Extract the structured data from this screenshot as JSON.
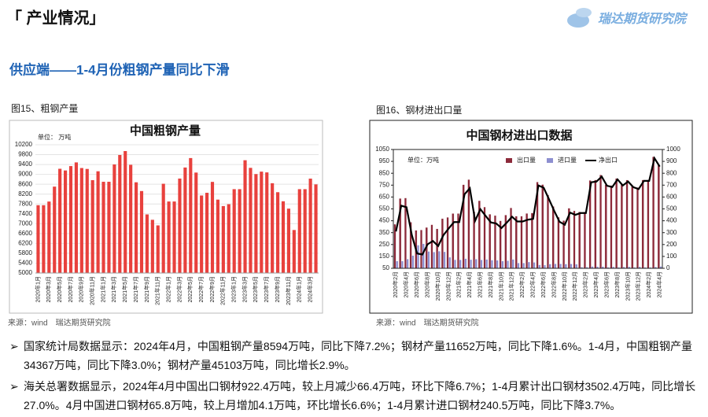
{
  "header": {
    "title": "「 产业情况」",
    "logo": "瑞达期货研究院"
  },
  "subtitle": "供应端——1-4月份粗钢产量同比下滑",
  "figures": [
    {
      "caption": "图15、粗钢产量",
      "source": "来源：wind　瑞达期货研究院"
    },
    {
      "caption": "图16、钢材进出口量",
      "source": "来源：wind　瑞达期货研究院"
    }
  ],
  "chart_data": [
    {
      "type": "bar",
      "title": "中国粗钢产量",
      "unit": "单位： 万吨",
      "color": "#e8413d",
      "grid": true,
      "categories": [
        "2020年1月",
        null,
        "2020年3月",
        null,
        "2020年5月",
        null,
        "2020年7月",
        null,
        "2020年9月",
        null,
        "2020年11月",
        null,
        "2021年1月",
        null,
        "2021年3月",
        null,
        "2021年5月",
        null,
        "2021年7月",
        null,
        "2021年9月",
        null,
        "2021年11月",
        null,
        "2022年1月",
        null,
        "2022年3月",
        null,
        "2022年5月",
        null,
        "2022年7月",
        null,
        "2022年9月",
        null,
        "2022年11月",
        null,
        "2023年1月",
        null,
        "2023年3月",
        null,
        "2023年5月",
        null,
        "2023年7月",
        null,
        "2023年9月",
        null,
        "2023年11月",
        null,
        "2024年1月",
        null,
        "2024年3月",
        null
      ],
      "values": [
        7750,
        7750,
        7898,
        8503,
        9227,
        9158,
        9336,
        9485,
        9257,
        9220,
        8766,
        9125,
        8700,
        8700,
        9402,
        9785,
        9945,
        9388,
        8679,
        8324,
        7375,
        7158,
        6931,
        8619,
        7900,
        7900,
        8830,
        9278,
        9661,
        9073,
        8143,
        8253,
        8695,
        7976,
        7715,
        7790,
        8400,
        8400,
        9573,
        9264,
        9012,
        9111,
        9080,
        8641,
        8277,
        7909,
        7610,
        6744,
        8400,
        8400,
        8827,
        8594
      ],
      "ylim": [
        5000,
        10200
      ],
      "yticks": [
        5000,
        5400,
        5800,
        6200,
        6600,
        7000,
        7400,
        7800,
        8200,
        8600,
        9000,
        9400,
        9800,
        10200
      ]
    },
    {
      "type": "combo",
      "title": "中国钢材进出口数据",
      "unit": "单位：万吨",
      "legend": "top",
      "grid": false,
      "categories": [
        "2020年2月",
        null,
        "2020年4月",
        null,
        "2020年6月",
        null,
        "2020年8月",
        null,
        "2020年10月",
        null,
        "2020年12月",
        null,
        "2021年2月",
        null,
        "2021年4月",
        null,
        "2021年6月",
        null,
        "2021年8月",
        null,
        "2021年10月",
        null,
        "2021年12月",
        null,
        "2022年2月",
        null,
        "2022年4月",
        null,
        "2022年6月",
        null,
        "2022年8月",
        null,
        "2022年10月",
        null,
        "2022年12月",
        null,
        "2023年2月",
        null,
        "2023年4月",
        null,
        "2023年6月",
        null,
        "2023年8月",
        null,
        "2023年10月",
        null,
        "2023年12月",
        null,
        "2024年2月",
        null,
        "2024年4月"
      ],
      "series": [
        {
          "name": "出口量",
          "color": "#8c2a3a",
          "kind": "bar",
          "values": [
            421,
            638,
            642,
            438,
            370,
            373,
            394,
            417,
            382,
            468,
            479,
            511,
            511,
            754,
            797,
            527,
            619,
            566,
            505,
            494,
            450,
            498,
            559,
            489,
            489,
            512,
            516,
            776,
            755,
            668,
            571,
            480,
            452,
            556,
            534,
            525,
            525,
            790,
            794,
            836,
            754,
            747,
            806,
            759,
            793,
            741,
            730,
            794,
            794,
            989,
            922
          ]
        },
        {
          "name": "进口量",
          "color": "#8d8fd0",
          "kind": "bar",
          "values": [
            111,
            111,
            128,
            157,
            245,
            257,
            192,
            187,
            194,
            189,
            143,
            122,
            122,
            131,
            123,
            127,
            121,
            125,
            119,
            117,
            111,
            114,
            125,
            95,
            95,
            103,
            100,
            79,
            77,
            86,
            88,
            88,
            86,
            87,
            84,
            60,
            60,
            66,
            64,
            64,
            59,
            63,
            58,
            62,
            63,
            58,
            63,
            58,
            58,
            62,
            66
          ]
        },
        {
          "name": "净出口",
          "color": "#000000",
          "kind": "line",
          "axis": "y2",
          "values": [
            310,
            527,
            514,
            281,
            125,
            116,
            202,
            230,
            188,
            279,
            336,
            389,
            389,
            623,
            674,
            400,
            498,
            441,
            386,
            377,
            339,
            384,
            434,
            394,
            394,
            409,
            416,
            697,
            678,
            582,
            483,
            392,
            366,
            469,
            450,
            465,
            465,
            724,
            730,
            772,
            695,
            684,
            748,
            697,
            730,
            683,
            667,
            736,
            736,
            927,
            856
          ]
        }
      ],
      "ylim": [
        50,
        1050
      ],
      "yticks": [
        50,
        150,
        250,
        350,
        450,
        550,
        650,
        750,
        850,
        950,
        1050
      ],
      "y2lim": [
        0,
        1000
      ],
      "y2ticks": [
        0,
        100,
        200,
        300,
        400,
        500,
        600,
        700,
        800,
        900,
        1000
      ]
    }
  ],
  "bullets": [
    "国家统计局数据显示：2024年4月，中国粗钢产量8594万吨，同比下降7.2%；钢材产量11652万吨，同比下降1.6%。1-4月，中国粗钢产量34367万吨，同比下降3.0%；钢材产量45103万吨，同比增长2.9%。",
    "海关总署数据显示，2024年4月中国出口钢材922.4万吨，较上月减少66.4万吨，环比下降6.7%；1-4月累计出口钢材3502.4万吨，同比增长27.0%。4月中国进口钢材65.8万吨，较上月增加4.1万吨，环比增长6.6%；1-4月累计进口钢材240.5万吨，同比下降3.7%。"
  ]
}
